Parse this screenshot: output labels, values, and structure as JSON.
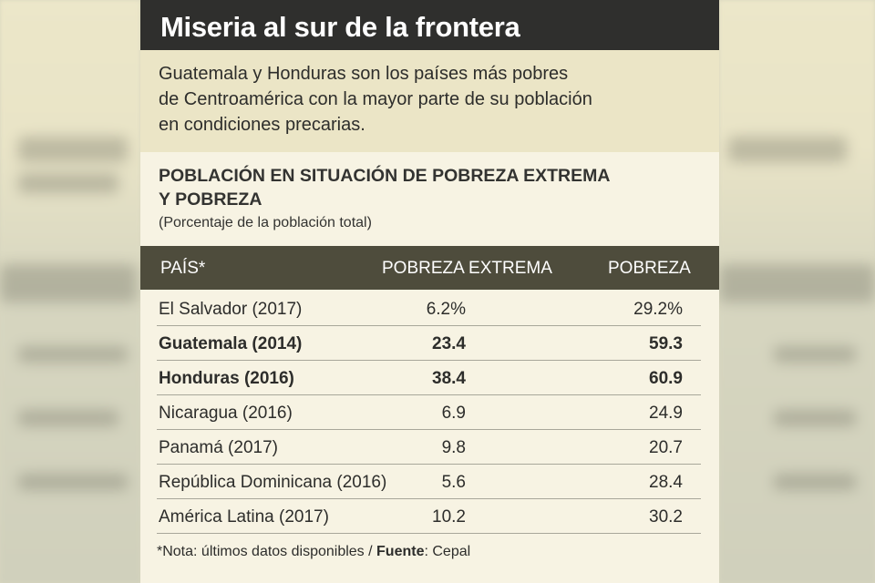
{
  "title": "Miseria al sur de la frontera",
  "intro_lines": [
    "Guatemala y Honduras son los países más pobres",
    "de Centroamérica con la mayor parte de su población",
    "en condiciones precarias."
  ],
  "chart_data": {
    "type": "table",
    "title_lines": [
      "POBLACIÓN EN SITUACIÓN DE POBREZA EXTREMA",
      "Y POBREZA"
    ],
    "subtitle": "(Porcentaje de la población total)",
    "columns": [
      "PAÍS*",
      "POBREZA EXTREMA",
      "POBREZA"
    ],
    "rows": [
      {
        "country": "El Salvador (2017)",
        "extreme": "6.2%",
        "poverty": "29.2%",
        "bold": false
      },
      {
        "country": "Guatemala (2014)",
        "extreme": "23.4",
        "poverty": "59.3",
        "bold": true
      },
      {
        "country": "Honduras (2016)",
        "extreme": "38.4",
        "poverty": "60.9",
        "bold": true
      },
      {
        "country": "Nicaragua (2016)",
        "extreme": "6.9",
        "poverty": "24.9",
        "bold": false
      },
      {
        "country": "Panamá (2017)",
        "extreme": "9.8",
        "poverty": "20.7",
        "bold": false
      },
      {
        "country": "República Dominicana (2016)",
        "extreme": "5.6",
        "poverty": "28.4",
        "bold": false
      },
      {
        "country": "América Latina (2017)",
        "extreme": "10.2",
        "poverty": "30.2",
        "bold": false
      }
    ]
  },
  "note": {
    "text": "*Nota: últimos datos disponibles / ",
    "source_label": "Fuente",
    "source_value": ": Cepal"
  },
  "colors": {
    "title_bar": "#2f2f2d",
    "intro_bg": "#ebe5c6",
    "panel_bg": "#f7f3e3",
    "header_bg": "#4e4c3c"
  }
}
